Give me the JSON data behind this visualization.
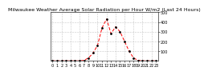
{
  "title": "Milwaukee Weather Average Solar Radiation per Hour W/m2 (Last 24 Hours)",
  "background_color": "#ffffff",
  "line_color": "#ff0000",
  "dot_color": "#000000",
  "x_values": [
    0,
    1,
    2,
    3,
    4,
    5,
    6,
    7,
    8,
    9,
    10,
    11,
    12,
    13,
    14,
    15,
    16,
    17,
    18,
    19,
    20,
    21,
    22,
    23
  ],
  "y_values": [
    0,
    0,
    0,
    0,
    0,
    0,
    0,
    5,
    30,
    80,
    160,
    340,
    430,
    280,
    350,
    300,
    200,
    100,
    30,
    5,
    0,
    0,
    0,
    0
  ],
  "ylim": [
    0,
    500
  ],
  "xlim": [
    -0.5,
    23.5
  ],
  "yticks": [
    100,
    200,
    300,
    400,
    500
  ],
  "xticks": [
    0,
    1,
    2,
    3,
    4,
    5,
    6,
    7,
    8,
    9,
    10,
    11,
    12,
    13,
    14,
    15,
    16,
    17,
    18,
    19,
    20,
    21,
    22,
    23
  ],
  "grid_x_ticks": [
    0,
    2,
    4,
    6,
    8,
    10,
    12,
    14,
    16,
    18,
    20,
    22
  ],
  "grid_color": "#999999",
  "title_fontsize": 4.5,
  "tick_fontsize": 3.5,
  "yaxis_right": true
}
